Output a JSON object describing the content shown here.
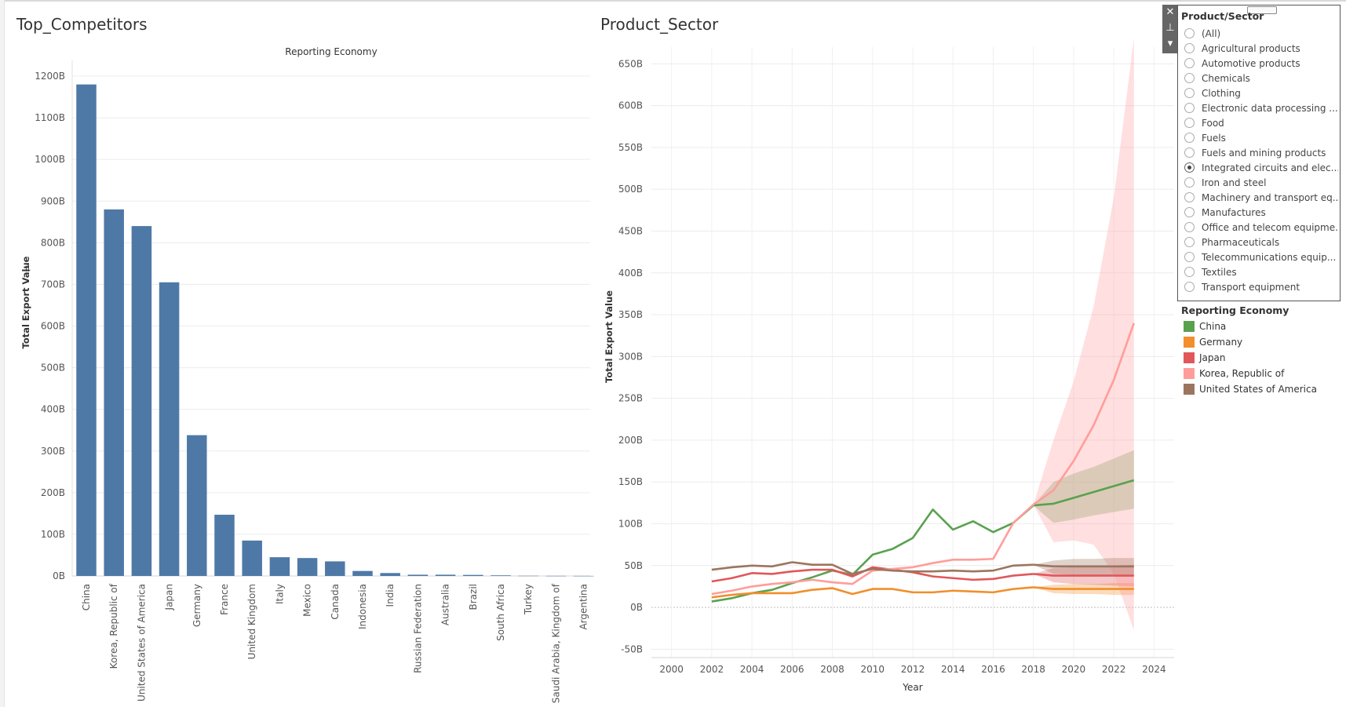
{
  "sheets": {
    "left_title": "Top_Competitors",
    "right_title": "Product_Sector"
  },
  "filter": {
    "title": "Product/Sector",
    "options": [
      {
        "label": "(All)",
        "selected": false
      },
      {
        "label": "Agricultural products",
        "selected": false
      },
      {
        "label": "Automotive products",
        "selected": false
      },
      {
        "label": "Chemicals",
        "selected": false
      },
      {
        "label": "Clothing",
        "selected": false
      },
      {
        "label": "Electronic data processing ...",
        "selected": false
      },
      {
        "label": "Food",
        "selected": false
      },
      {
        "label": "Fuels",
        "selected": false
      },
      {
        "label": "Fuels and mining products",
        "selected": false
      },
      {
        "label": "Integrated circuits and elec...",
        "selected": true
      },
      {
        "label": "Iron and steel",
        "selected": false
      },
      {
        "label": "Machinery and transport eq...",
        "selected": false
      },
      {
        "label": "Manufactures",
        "selected": false
      },
      {
        "label": "Office and telecom equipme...",
        "selected": false
      },
      {
        "label": "Pharmaceuticals",
        "selected": false
      },
      {
        "label": "Telecommunications equip...",
        "selected": false
      },
      {
        "label": "Textiles",
        "selected": false
      },
      {
        "label": "Transport equipment",
        "selected": false
      }
    ],
    "side_icons": [
      "close-icon",
      "pin-icon",
      "dropdown-icon"
    ],
    "side_glyphs": [
      "✕",
      "⊥",
      "▾"
    ]
  },
  "legend": {
    "title": "Reporting Economy",
    "items": [
      {
        "label": "China",
        "color": "#59a14f"
      },
      {
        "label": "Germany",
        "color": "#f28e2b"
      },
      {
        "label": "Japan",
        "color": "#e15759"
      },
      {
        "label": "Korea, Republic of",
        "color": "#ff9d9a"
      },
      {
        "label": "United States of America",
        "color": "#9c755f"
      }
    ]
  },
  "chart_data": [
    {
      "type": "bar",
      "title": "Reporting Economy",
      "xlabel": "",
      "ylabel": "Total Export Value",
      "ylim": [
        0,
        1200
      ],
      "yticks": [
        "0B",
        "100B",
        "200B",
        "300B",
        "400B",
        "500B",
        "600B",
        "700B",
        "800B",
        "900B",
        "1000B",
        "1100B",
        "1200B"
      ],
      "bar_color": "#4e79a7",
      "categories": [
        "China",
        "Korea, Republic of",
        "United States of America",
        "Japan",
        "Germany",
        "France",
        "United Kingdom",
        "Italy",
        "Mexico",
        "Canada",
        "Indonesia",
        "India",
        "Russian Federation",
        "Australia",
        "Brazil",
        "South Africa",
        "Turkey",
        "Saudi Arabia, Kingdom of",
        "Argentina"
      ],
      "values": [
        1180,
        880,
        840,
        705,
        338,
        147,
        85,
        45,
        43,
        35,
        12,
        7,
        3,
        3,
        2.5,
        1.5,
        0.5,
        0.3,
        0.2
      ],
      "grid": true
    },
    {
      "type": "line",
      "title": "",
      "xlabel": "Year",
      "ylabel": "Total Export Value",
      "xlim": [
        1999,
        2025
      ],
      "ylim": [
        -60,
        670
      ],
      "xticks": [
        2000,
        2002,
        2004,
        2006,
        2008,
        2010,
        2012,
        2014,
        2016,
        2018,
        2020,
        2022,
        2024
      ],
      "yticks": [
        -50,
        0,
        50,
        100,
        150,
        200,
        250,
        300,
        350,
        400,
        450,
        500,
        550,
        600,
        650
      ],
      "ytick_labels": [
        "-50B",
        "0B",
        "50B",
        "100B",
        "150B",
        "200B",
        "250B",
        "300B",
        "350B",
        "400B",
        "450B",
        "500B",
        "550B",
        "600B",
        "650B"
      ],
      "grid": true,
      "series": [
        {
          "name": "China",
          "color": "#59a14f",
          "x": [
            2002,
            2003,
            2004,
            2005,
            2006,
            2007,
            2008,
            2009,
            2010,
            2011,
            2012,
            2013,
            2014,
            2015,
            2016,
            2017,
            2018
          ],
          "y": [
            7,
            11,
            17,
            21,
            29,
            36,
            44,
            39,
            63,
            70,
            83,
            117,
            93,
            103,
            90,
            101,
            122
          ],
          "forecast": {
            "x": [
              2018,
              2019,
              2020,
              2021,
              2022,
              2023
            ],
            "y": [
              122,
              124,
              131,
              138,
              145,
              152
            ],
            "upper": [
              122,
              150,
              160,
              168,
              178,
              188
            ],
            "lower": [
              122,
              101,
              105,
              110,
              114,
              118
            ]
          }
        },
        {
          "name": "Germany",
          "color": "#f28e2b",
          "x": [
            2002,
            2003,
            2004,
            2005,
            2006,
            2007,
            2008,
            2009,
            2010,
            2011,
            2012,
            2013,
            2014,
            2015,
            2016,
            2017,
            2018
          ],
          "y": [
            12,
            15,
            17,
            17,
            17,
            21,
            23,
            16,
            22,
            22,
            18,
            18,
            20,
            19,
            18,
            22,
            24
          ],
          "forecast": {
            "x": [
              2018,
              2019,
              2020,
              2021,
              2022,
              2023
            ],
            "y": [
              24,
              22,
              22,
              22,
              22,
              22
            ],
            "upper": [
              24,
              27,
              28,
              28,
              29,
              29
            ],
            "lower": [
              24,
              17,
              16,
              16,
              15,
              15
            ]
          }
        },
        {
          "name": "Japan",
          "color": "#e15759",
          "x": [
            2002,
            2003,
            2004,
            2005,
            2006,
            2007,
            2008,
            2009,
            2010,
            2011,
            2012,
            2013,
            2014,
            2015,
            2016,
            2017,
            2018
          ],
          "y": [
            31,
            35,
            41,
            40,
            43,
            45,
            45,
            37,
            48,
            45,
            42,
            37,
            35,
            33,
            34,
            38,
            40
          ],
          "forecast": {
            "x": [
              2018,
              2019,
              2020,
              2021,
              2022,
              2023
            ],
            "y": [
              40,
              38,
              38,
              38,
              38,
              38
            ],
            "upper": [
              40,
              47,
              48,
              49,
              50,
              51
            ],
            "lower": [
              40,
              30,
              28,
              27,
              26,
              25
            ]
          }
        },
        {
          "name": "Korea, Republic of",
          "color": "#ff9d9a",
          "x": [
            2002,
            2003,
            2004,
            2005,
            2006,
            2007,
            2008,
            2009,
            2010,
            2011,
            2012,
            2013,
            2014,
            2015,
            2016,
            2017,
            2018
          ],
          "y": [
            16,
            20,
            25,
            28,
            30,
            33,
            30,
            28,
            44,
            46,
            48,
            53,
            57,
            57,
            58,
            101,
            123
          ],
          "forecast": {
            "x": [
              2018,
              2019,
              2020,
              2021,
              2022,
              2023
            ],
            "y": [
              123,
              140,
              175,
              218,
              272,
              340
            ],
            "upper": [
              123,
              200,
              270,
              360,
              490,
              680
            ],
            "lower": [
              123,
              78,
              80,
              75,
              40,
              -27
            ]
          }
        },
        {
          "name": "United States of America",
          "color": "#9c755f",
          "x": [
            2002,
            2003,
            2004,
            2005,
            2006,
            2007,
            2008,
            2009,
            2010,
            2011,
            2012,
            2013,
            2014,
            2015,
            2016,
            2017,
            2018
          ],
          "y": [
            45,
            48,
            50,
            49,
            54,
            51,
            51,
            40,
            46,
            44,
            43,
            43,
            44,
            43,
            44,
            50,
            51
          ],
          "forecast": {
            "x": [
              2018,
              2019,
              2020,
              2021,
              2022,
              2023
            ],
            "y": [
              51,
              49,
              49,
              49,
              49,
              49
            ],
            "upper": [
              51,
              56,
              58,
              58,
              59,
              59
            ],
            "lower": [
              51,
              40,
              39,
              38,
              38,
              38
            ]
          }
        }
      ]
    }
  ]
}
